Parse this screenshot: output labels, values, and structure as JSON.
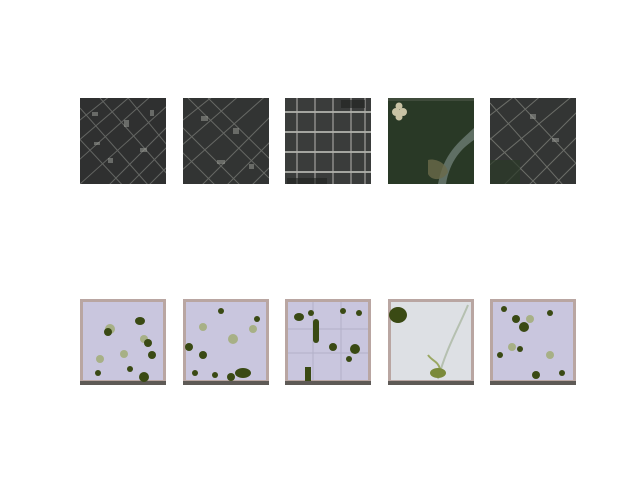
{
  "figure": {
    "rows": [
      {
        "kind": "satellite",
        "tiles": [
          {
            "scene": "dense-urban-diagonal"
          },
          {
            "scene": "dense-urban-diagonal"
          },
          {
            "scene": "urban-grid"
          },
          {
            "scene": "park"
          },
          {
            "scene": "dense-urban-diagonal"
          }
        ]
      },
      {
        "kind": "generated-map",
        "tiles": [
          {
            "scene": "map-scattered-trees"
          },
          {
            "scene": "map-scattered-trees"
          },
          {
            "scene": "map-grid-trees"
          },
          {
            "scene": "map-park"
          },
          {
            "scene": "map-scattered-trees"
          }
        ]
      }
    ],
    "colors": {
      "urban_dark": "#2f3030",
      "urban_light": "#8a8c88",
      "park_green": "#2e3f2c",
      "map_bg": "#c9c6de",
      "map_border": "#b9a6a2",
      "tree_green": "#3a4a14",
      "tree_light": "#9aa862"
    }
  }
}
